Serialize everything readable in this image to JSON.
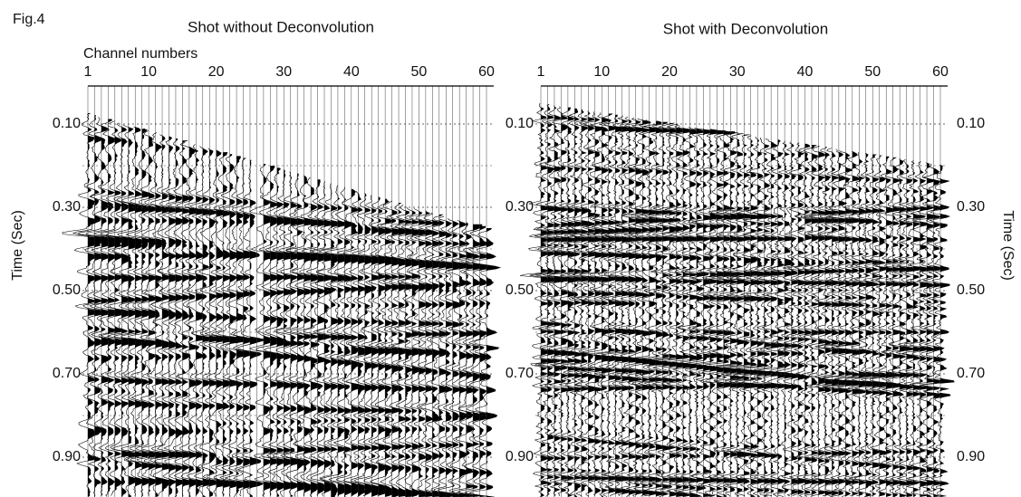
{
  "figure_label": "Fig.4",
  "panels": [
    {
      "title": "Shot without Deconvolution",
      "x_axis_label": "Channel numbers",
      "channel_ticks": [
        "1",
        "10",
        "20",
        "30",
        "40",
        "50",
        "60"
      ],
      "left_time_ticks": [
        "0.10",
        "0.30",
        "0.50",
        "0.70",
        "0.90"
      ],
      "y_axis_label": "Time (Sec)"
    },
    {
      "title": "Shot with Deconvolution",
      "channel_ticks": [
        "1",
        "10",
        "20",
        "30",
        "40",
        "50",
        "60"
      ],
      "left_time_ticks": [
        "0.10",
        "0.30",
        "0.50",
        "0.70",
        "0.90"
      ],
      "right_time_ticks": [
        "0.10",
        "0.30",
        "0.50",
        "0.70",
        "0.90"
      ],
      "y_axis_label": "Time (Sec)"
    }
  ]
}
